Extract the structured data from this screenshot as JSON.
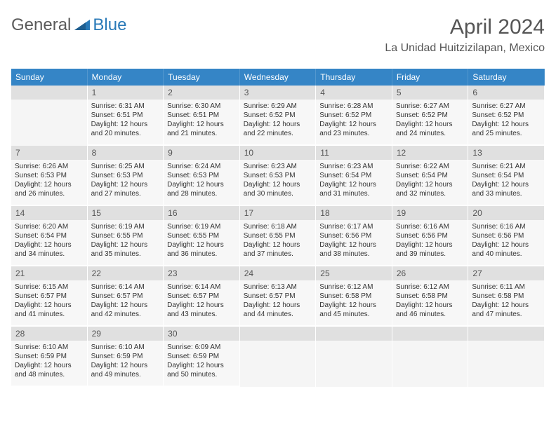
{
  "logo": {
    "word1": "General",
    "word2": "Blue"
  },
  "title": {
    "month": "April 2024",
    "location": "La Unidad Huitzizilapan, Mexico"
  },
  "weekdays": [
    "Sunday",
    "Monday",
    "Tuesday",
    "Wednesday",
    "Thursday",
    "Friday",
    "Saturday"
  ],
  "colors": {
    "header_bg": "#3585c6",
    "daynum_bg": "#e0e0e0",
    "daybody_bg": "#f7f7f7",
    "text": "#333333",
    "title_text": "#555555"
  },
  "typography": {
    "month_fontsize": 30,
    "location_fontsize": 16,
    "weekday_fontsize": 12,
    "daynum_fontsize": 12,
    "body_fontsize": 10
  },
  "grid": {
    "cols": 7,
    "rows": 5,
    "first_weekday_index": 1,
    "days_in_month": 30
  },
  "days": [
    {
      "n": 1,
      "sr": "6:31 AM",
      "ss": "6:51 PM",
      "dl": "12 hours and 20 minutes."
    },
    {
      "n": 2,
      "sr": "6:30 AM",
      "ss": "6:51 PM",
      "dl": "12 hours and 21 minutes."
    },
    {
      "n": 3,
      "sr": "6:29 AM",
      "ss": "6:52 PM",
      "dl": "12 hours and 22 minutes."
    },
    {
      "n": 4,
      "sr": "6:28 AM",
      "ss": "6:52 PM",
      "dl": "12 hours and 23 minutes."
    },
    {
      "n": 5,
      "sr": "6:27 AM",
      "ss": "6:52 PM",
      "dl": "12 hours and 24 minutes."
    },
    {
      "n": 6,
      "sr": "6:27 AM",
      "ss": "6:52 PM",
      "dl": "12 hours and 25 minutes."
    },
    {
      "n": 7,
      "sr": "6:26 AM",
      "ss": "6:53 PM",
      "dl": "12 hours and 26 minutes."
    },
    {
      "n": 8,
      "sr": "6:25 AM",
      "ss": "6:53 PM",
      "dl": "12 hours and 27 minutes."
    },
    {
      "n": 9,
      "sr": "6:24 AM",
      "ss": "6:53 PM",
      "dl": "12 hours and 28 minutes."
    },
    {
      "n": 10,
      "sr": "6:23 AM",
      "ss": "6:53 PM",
      "dl": "12 hours and 30 minutes."
    },
    {
      "n": 11,
      "sr": "6:23 AM",
      "ss": "6:54 PM",
      "dl": "12 hours and 31 minutes."
    },
    {
      "n": 12,
      "sr": "6:22 AM",
      "ss": "6:54 PM",
      "dl": "12 hours and 32 minutes."
    },
    {
      "n": 13,
      "sr": "6:21 AM",
      "ss": "6:54 PM",
      "dl": "12 hours and 33 minutes."
    },
    {
      "n": 14,
      "sr": "6:20 AM",
      "ss": "6:54 PM",
      "dl": "12 hours and 34 minutes."
    },
    {
      "n": 15,
      "sr": "6:19 AM",
      "ss": "6:55 PM",
      "dl": "12 hours and 35 minutes."
    },
    {
      "n": 16,
      "sr": "6:19 AM",
      "ss": "6:55 PM",
      "dl": "12 hours and 36 minutes."
    },
    {
      "n": 17,
      "sr": "6:18 AM",
      "ss": "6:55 PM",
      "dl": "12 hours and 37 minutes."
    },
    {
      "n": 18,
      "sr": "6:17 AM",
      "ss": "6:56 PM",
      "dl": "12 hours and 38 minutes."
    },
    {
      "n": 19,
      "sr": "6:16 AM",
      "ss": "6:56 PM",
      "dl": "12 hours and 39 minutes."
    },
    {
      "n": 20,
      "sr": "6:16 AM",
      "ss": "6:56 PM",
      "dl": "12 hours and 40 minutes."
    },
    {
      "n": 21,
      "sr": "6:15 AM",
      "ss": "6:57 PM",
      "dl": "12 hours and 41 minutes."
    },
    {
      "n": 22,
      "sr": "6:14 AM",
      "ss": "6:57 PM",
      "dl": "12 hours and 42 minutes."
    },
    {
      "n": 23,
      "sr": "6:14 AM",
      "ss": "6:57 PM",
      "dl": "12 hours and 43 minutes."
    },
    {
      "n": 24,
      "sr": "6:13 AM",
      "ss": "6:57 PM",
      "dl": "12 hours and 44 minutes."
    },
    {
      "n": 25,
      "sr": "6:12 AM",
      "ss": "6:58 PM",
      "dl": "12 hours and 45 minutes."
    },
    {
      "n": 26,
      "sr": "6:12 AM",
      "ss": "6:58 PM",
      "dl": "12 hours and 46 minutes."
    },
    {
      "n": 27,
      "sr": "6:11 AM",
      "ss": "6:58 PM",
      "dl": "12 hours and 47 minutes."
    },
    {
      "n": 28,
      "sr": "6:10 AM",
      "ss": "6:59 PM",
      "dl": "12 hours and 48 minutes."
    },
    {
      "n": 29,
      "sr": "6:10 AM",
      "ss": "6:59 PM",
      "dl": "12 hours and 49 minutes."
    },
    {
      "n": 30,
      "sr": "6:09 AM",
      "ss": "6:59 PM",
      "dl": "12 hours and 50 minutes."
    }
  ],
  "labels": {
    "sunrise": "Sunrise:",
    "sunset": "Sunset:",
    "daylight": "Daylight:"
  }
}
